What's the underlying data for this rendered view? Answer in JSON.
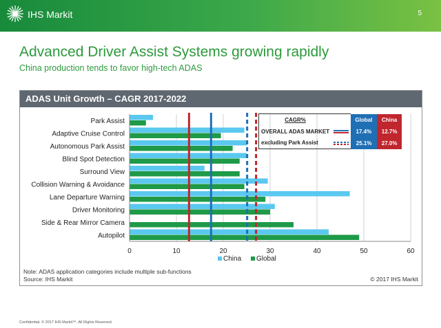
{
  "header": {
    "brand": "IHS Markit",
    "page_number": "5"
  },
  "slide": {
    "title": "Advanced Driver Assist Systems growing rapidly",
    "subtitle": "China production tends to favor high-tech ADAS"
  },
  "panel": {
    "title": "ADAS Unit Growth – CAGR 2017-2022"
  },
  "cagr_table": {
    "header": "CAGR%",
    "col_global": "Global",
    "col_china": "China",
    "rows": [
      {
        "label": "OVERALL ADAS MARKET",
        "global": "17.4%",
        "china": "12.7%",
        "line_style": "solid"
      },
      {
        "label": "excluding Park Assist",
        "global": "25.1%",
        "china": "27.0%",
        "line_style": "dashed"
      }
    ]
  },
  "chart_data": {
    "type": "bar",
    "orientation": "horizontal",
    "title": "ADAS Unit Growth – CAGR 2017-2022",
    "categories": [
      "Park Assist",
      "Adaptive Cruise Control",
      "Autonomous Park Assist",
      "Blind Spot Detection",
      "Surround View",
      "Collision Warning & Avoidance",
      "Lane Departure Warning",
      "Driver Monitoring",
      "Side & Rear Mirror Camera",
      "Autopilot"
    ],
    "series": [
      {
        "name": "China",
        "color": "#5bc8f0",
        "values": [
          5,
          24.5,
          25,
          25,
          16,
          29.5,
          47,
          31,
          0,
          42.5
        ]
      },
      {
        "name": "Global",
        "color": "#1e9a48",
        "values": [
          3.5,
          19.5,
          22,
          23.5,
          23.5,
          24.5,
          29,
          30,
          35,
          49
        ]
      }
    ],
    "xlim": [
      0,
      60
    ],
    "xticks": [
      0,
      10,
      20,
      30,
      40,
      50,
      60
    ],
    "grid": true,
    "legend": "bottom-center",
    "reference_lines": [
      {
        "value": 12.7,
        "color": "#c0262d",
        "style": "solid"
      },
      {
        "value": 17.4,
        "color": "#1f6fb5",
        "style": "solid"
      },
      {
        "value": 25.1,
        "color": "#1f6fb5",
        "style": "dashed"
      },
      {
        "value": 27.0,
        "color": "#c0262d",
        "style": "dashed"
      }
    ]
  },
  "notes": {
    "note": "Note: ADAS application categories include multiple sub-functions",
    "source": "Source: IHS Markit",
    "copyright": "© 2017 IHS Markit"
  },
  "footer": {
    "text": "Confidential. © 2017 IHS Markit™. All Rights Reserved."
  }
}
